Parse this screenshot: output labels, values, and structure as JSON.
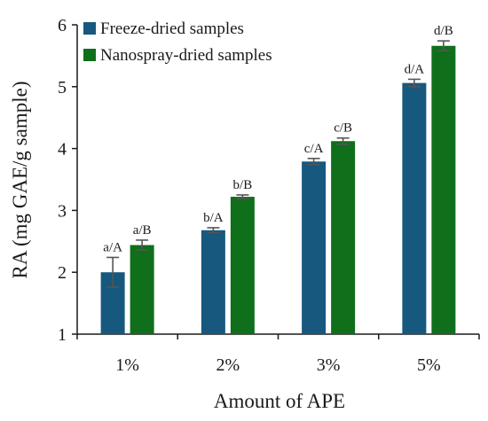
{
  "chart_data": {
    "type": "bar",
    "categories": [
      "1%",
      "2%",
      "3%",
      "5%"
    ],
    "series": [
      {
        "name": "Freeze-dried samples",
        "color": "#17587e",
        "values": [
          2.0,
          2.68,
          3.79,
          5.06
        ],
        "errors": [
          0.24,
          0.04,
          0.05,
          0.06
        ],
        "labels": [
          "a/A",
          "b/A",
          "c/A",
          "d/A"
        ]
      },
      {
        "name": "Nanospray-dried samples",
        "color": "#0f6f1b",
        "values": [
          2.44,
          3.22,
          4.12,
          5.66
        ],
        "errors": [
          0.08,
          0.03,
          0.05,
          0.08
        ],
        "labels": [
          "a/B",
          "b/B",
          "c/B",
          "d/B"
        ]
      }
    ],
    "yticks": [
      "1",
      "2",
      "3",
      "4",
      "5",
      "6"
    ],
    "xlabel": "Amount of APE",
    "ylabel": "RA (mg GAE/g sample)",
    "ylim": [
      1,
      6
    ],
    "grid": false,
    "legend": "top-left"
  }
}
